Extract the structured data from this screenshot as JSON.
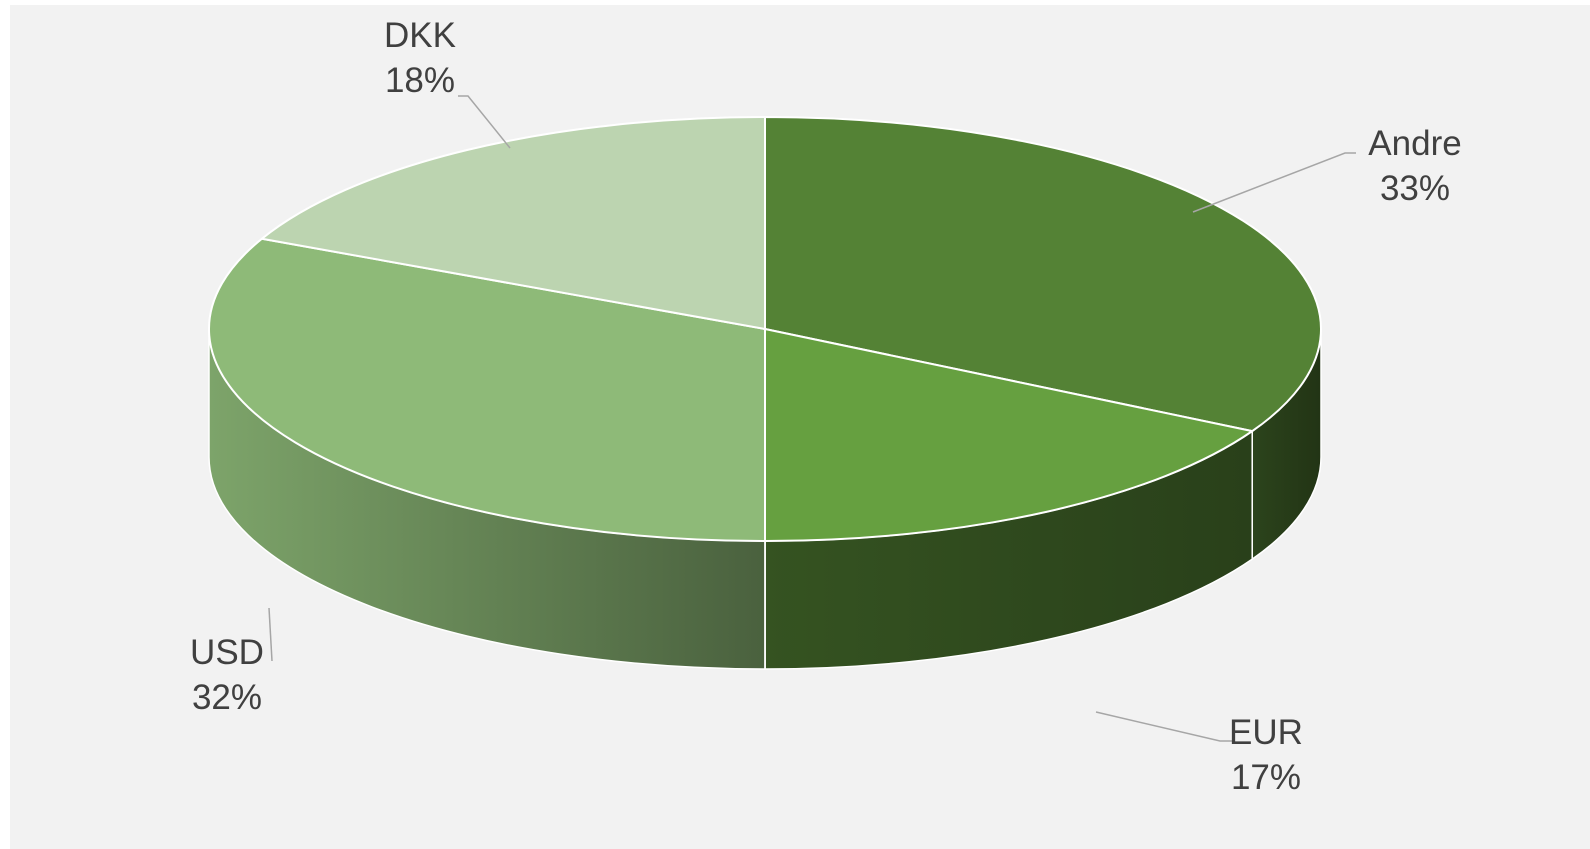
{
  "chart_data": {
    "type": "pie",
    "style": "3d",
    "slices": [
      {
        "label": "Andre",
        "value": 33,
        "display": "33%",
        "color": "#548235"
      },
      {
        "label": "EUR",
        "value": 17,
        "display": "17%",
        "color": "#66a040"
      },
      {
        "label": "USD",
        "value": 32,
        "display": "32%",
        "color": "#8eba78"
      },
      {
        "label": "DKK",
        "value": 18,
        "display": "18%",
        "color": "#bcd4b0"
      }
    ],
    "title": "",
    "legend": "none"
  },
  "colors": {
    "background": "#f2f2f2",
    "outline": "#ffffff",
    "leader_line": "#a6a6a6",
    "label_text": "#404040"
  }
}
